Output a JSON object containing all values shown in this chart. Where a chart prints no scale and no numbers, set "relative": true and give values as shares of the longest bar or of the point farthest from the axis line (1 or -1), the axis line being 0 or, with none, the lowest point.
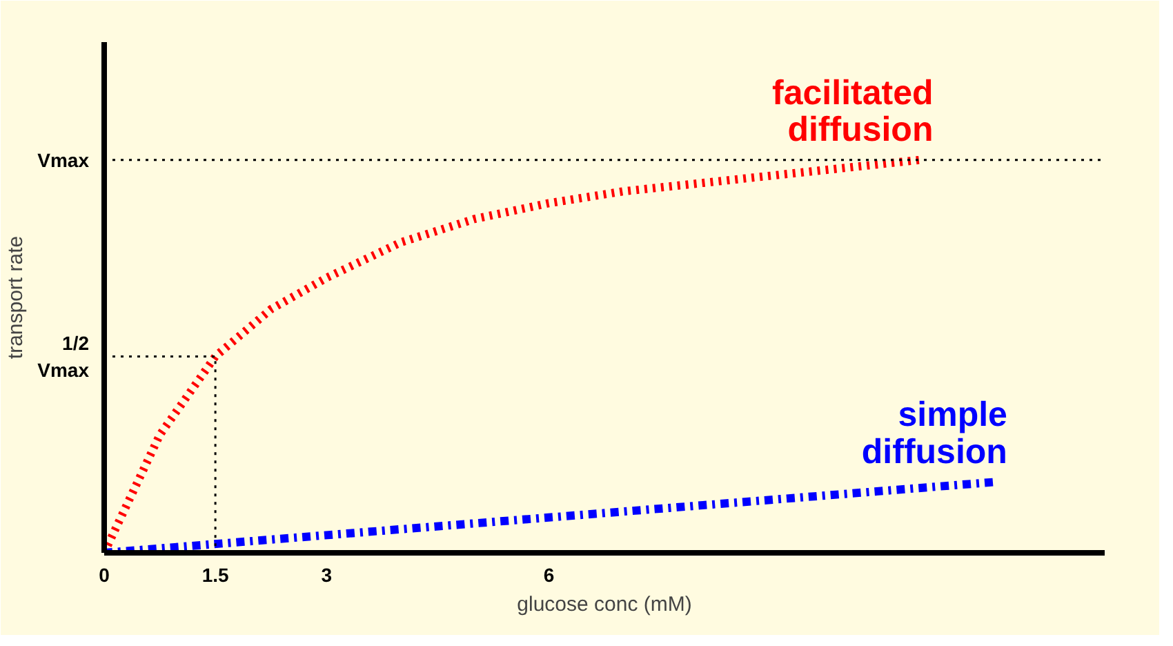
{
  "chart_data": {
    "type": "line",
    "relative": true,
    "xlabel": "glucose conc (mM)",
    "ylabel": "transport rate",
    "xlim": [
      0,
      13.5
    ],
    "xticks": [
      0,
      1.5,
      3,
      6
    ],
    "grid": false,
    "legend": false,
    "marker": "none",
    "series": [
      {
        "name": "facilitated diffusion",
        "color": "#ff0000",
        "line_style": "dotted",
        "x": [
          0,
          0.75,
          1.5,
          2.25,
          3,
          4,
          5,
          6,
          7,
          8,
          9,
          10,
          11
        ],
        "values": [
          0,
          0.3,
          0.5,
          0.62,
          0.7,
          0.79,
          0.85,
          0.89,
          0.92,
          0.94,
          0.96,
          0.98,
          1.0
        ]
      },
      {
        "name": "simple diffusion",
        "color": "#0000ff",
        "line_style": "dashdot",
        "x": [
          0,
          12
        ],
        "values": [
          0,
          0.18
        ]
      },
      {
        "color": "#000000",
        "line_style": "dotted",
        "x": [
          0,
          1.5,
          1.5
        ],
        "values": [
          0.5,
          0.5,
          0
        ]
      }
    ],
    "ref_lines": [
      {
        "axis": "y",
        "value": 1,
        "label": "Vmax",
        "color": "#000000",
        "line_style": "dotted"
      }
    ],
    "annotations": [
      {
        "text": "1/2 Vmax",
        "x": 0,
        "y": 0.5
      }
    ]
  }
}
